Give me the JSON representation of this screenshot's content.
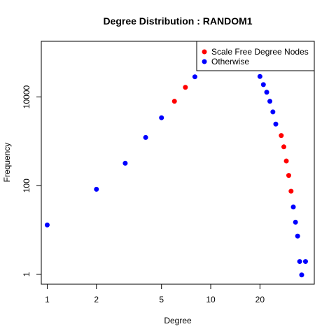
{
  "chart_data": {
    "type": "scatter",
    "title": "Degree Distribution : RANDOM1",
    "xlabel": "Degree",
    "ylabel": "Frequency",
    "x_scale": "log",
    "y_scale": "log",
    "xlim": [
      0.92,
      43
    ],
    "ylim": [
      0.6,
      180000
    ],
    "x_ticks": [
      {
        "value": 1,
        "label": "1"
      },
      {
        "value": 2,
        "label": "2"
      },
      {
        "value": 5,
        "label": "5"
      },
      {
        "value": 10,
        "label": "10"
      },
      {
        "value": 20,
        "label": "20"
      }
    ],
    "y_ticks": [
      {
        "value": 1,
        "label": "1"
      },
      {
        "value": 100,
        "label": "100"
      },
      {
        "value": 10000,
        "label": "10000"
      }
    ],
    "grid": false,
    "legend_position": "top-right",
    "series": [
      {
        "name": "Scale Free Degree Nodes",
        "color": "#ff0000",
        "points": [
          {
            "x": 6,
            "y": 8000
          },
          {
            "x": 7,
            "y": 16500
          },
          {
            "x": 27,
            "y": 1350
          },
          {
            "x": 28,
            "y": 750
          },
          {
            "x": 29,
            "y": 360
          },
          {
            "x": 30,
            "y": 170
          },
          {
            "x": 31,
            "y": 75
          }
        ]
      },
      {
        "name": "Otherwise",
        "color": "#0000ff",
        "points": [
          {
            "x": 1,
            "y": 13
          },
          {
            "x": 2,
            "y": 83
          },
          {
            "x": 3,
            "y": 320
          },
          {
            "x": 4,
            "y": 1220
          },
          {
            "x": 5,
            "y": 3400
          },
          {
            "x": 8,
            "y": 28500
          },
          {
            "x": 20,
            "y": 29000
          },
          {
            "x": 21,
            "y": 19000
          },
          {
            "x": 22,
            "y": 12800
          },
          {
            "x": 23,
            "y": 8000
          },
          {
            "x": 24,
            "y": 4600
          },
          {
            "x": 25,
            "y": 2450
          },
          {
            "x": 32,
            "y": 33
          },
          {
            "x": 33,
            "y": 15
          },
          {
            "x": 34,
            "y": 7.3
          },
          {
            "x": 35,
            "y": 1.95
          },
          {
            "x": 36,
            "y": 0.97
          },
          {
            "x": 38,
            "y": 1.95
          }
        ]
      }
    ]
  }
}
